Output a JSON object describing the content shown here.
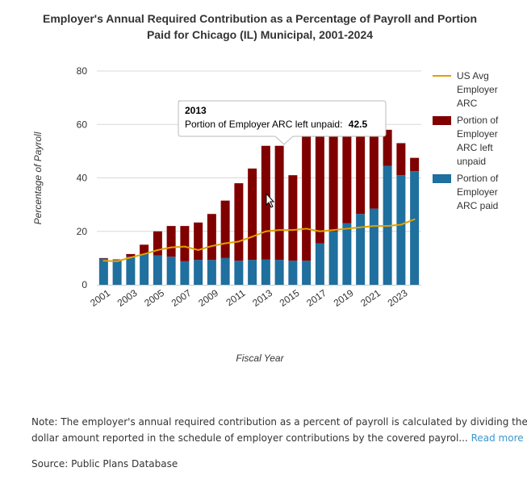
{
  "chart_data": {
    "type": "bar",
    "title": [
      "Employer's Annual Required Contribution as a Percentage of Payroll and Portion",
      "Paid for Chicago (IL) Municipal, 2001-2024"
    ],
    "xlabel": "Fiscal Year",
    "ylabel": "Percentage of Payroll",
    "ylim": [
      0,
      80
    ],
    "yticks": [
      0,
      20,
      40,
      60,
      80
    ],
    "categories": [
      2001,
      2002,
      2003,
      2004,
      2005,
      2006,
      2007,
      2008,
      2009,
      2010,
      2011,
      2012,
      2013,
      2014,
      2015,
      2016,
      2017,
      2018,
      2019,
      2020,
      2021,
      2022,
      2023,
      2024
    ],
    "x_tick_labels": [
      "2001",
      "2003",
      "2005",
      "2007",
      "2009",
      "2011",
      "2013",
      "2015",
      "2017",
      "2019",
      "2021",
      "2023"
    ],
    "stacked": true,
    "series": [
      {
        "name": "Portion of Employer ARC paid",
        "type": "bar",
        "color": "#1f6f9f",
        "values": [
          9.8,
          9.3,
          10.5,
          11.5,
          11.0,
          10.5,
          8.8,
          9.3,
          9.3,
          10.0,
          9.0,
          9.3,
          9.5,
          9.3,
          9.0,
          9.0,
          15.5,
          20.0,
          23.0,
          26.5,
          28.5,
          44.5,
          41.0,
          42.5
        ]
      },
      {
        "name": "Portion of Employer ARC left unpaid",
        "type": "bar",
        "color": "#800000",
        "values": [
          0.2,
          0.2,
          1.0,
          3.5,
          9.0,
          11.5,
          13.2,
          14.0,
          17.2,
          21.5,
          29.0,
          34.2,
          42.5,
          42.7,
          32.0,
          47.0,
          40.5,
          36.0,
          33.0,
          29.5,
          27.5,
          13.5,
          12.0,
          5.0
        ]
      },
      {
        "name": "US Avg Employer ARC",
        "type": "line",
        "color": "#e0a100",
        "values": [
          9.0,
          8.8,
          10.2,
          11.5,
          13.0,
          14.0,
          14.3,
          13.0,
          14.5,
          15.5,
          16.2,
          18.0,
          20.0,
          20.5,
          20.5,
          21.0,
          20.0,
          20.5,
          21.0,
          21.5,
          22.0,
          22.0,
          22.5,
          24.5
        ]
      }
    ],
    "legend": {
      "position": "right",
      "items": [
        {
          "lines": [
            "US Avg",
            "Employer",
            "ARC"
          ],
          "color": "#e0a100",
          "symbol": "line"
        },
        {
          "lines": [
            "Portion of",
            "Employer",
            "ARC left",
            "unpaid"
          ],
          "color": "#800000",
          "symbol": "box"
        },
        {
          "lines": [
            "Portion of",
            "Employer",
            "ARC paid"
          ],
          "color": "#1f6f9f",
          "symbol": "box"
        }
      ]
    },
    "tooltip": {
      "year": "2013",
      "label": "Portion of Employer ARC left unpaid:",
      "value": "42.5"
    }
  },
  "note": {
    "line1": "Note: The employer's annual required contribution as a percent of payroll is calculated by dividing the",
    "line2": "dollar amount reported in the schedule of employer contributions by the covered payrol...",
    "read_more": "Read more »"
  },
  "source": "Source: Public Plans Database"
}
